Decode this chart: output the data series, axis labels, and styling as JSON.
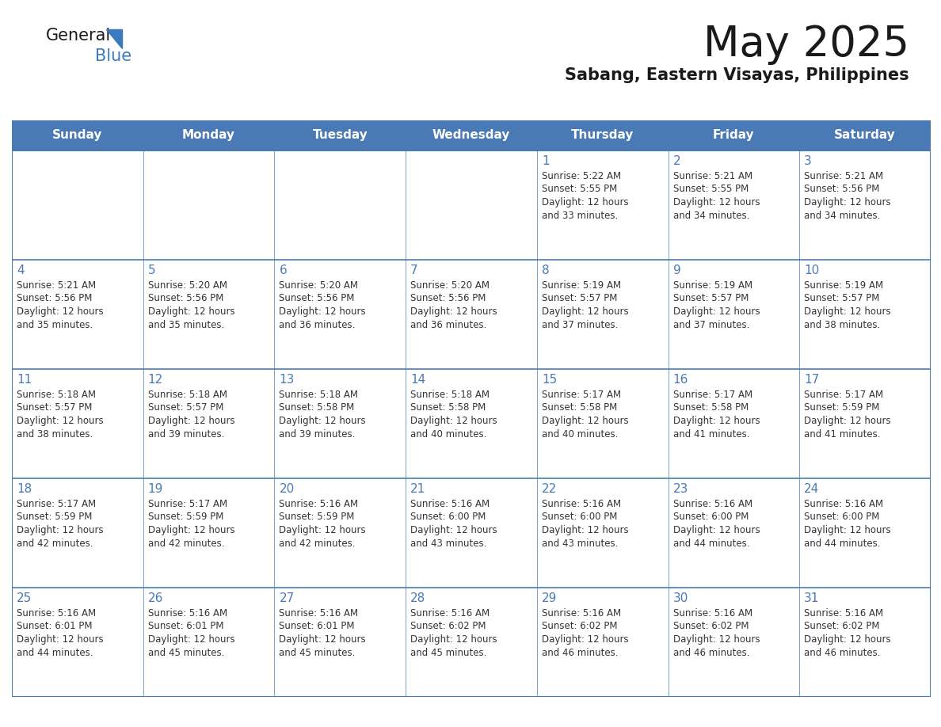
{
  "title": "May 2025",
  "subtitle": "Sabang, Eastern Visayas, Philippines",
  "days_of_week": [
    "Sunday",
    "Monday",
    "Tuesday",
    "Wednesday",
    "Thursday",
    "Friday",
    "Saturday"
  ],
  "header_bg": "#4a7ab5",
  "header_text": "#FFFFFF",
  "row_bg_white": "#FFFFFF",
  "row_bg_gray": "#F0F0F0",
  "day_number_color": "#4a7ab5",
  "text_color": "#333333",
  "grid_line_color": "#4a7ab5",
  "background_color": "#FFFFFF",
  "logo_general_color": "#1a1a1a",
  "logo_blue_color": "#3a7bbf",
  "logo_triangle_color": "#3a7bbf",
  "calendar_data": [
    [
      {
        "day": "",
        "info": ""
      },
      {
        "day": "",
        "info": ""
      },
      {
        "day": "",
        "info": ""
      },
      {
        "day": "",
        "info": ""
      },
      {
        "day": "1",
        "info": "Sunrise: 5:22 AM\nSunset: 5:55 PM\nDaylight: 12 hours\nand 33 minutes."
      },
      {
        "day": "2",
        "info": "Sunrise: 5:21 AM\nSunset: 5:55 PM\nDaylight: 12 hours\nand 34 minutes."
      },
      {
        "day": "3",
        "info": "Sunrise: 5:21 AM\nSunset: 5:56 PM\nDaylight: 12 hours\nand 34 minutes."
      }
    ],
    [
      {
        "day": "4",
        "info": "Sunrise: 5:21 AM\nSunset: 5:56 PM\nDaylight: 12 hours\nand 35 minutes."
      },
      {
        "day": "5",
        "info": "Sunrise: 5:20 AM\nSunset: 5:56 PM\nDaylight: 12 hours\nand 35 minutes."
      },
      {
        "day": "6",
        "info": "Sunrise: 5:20 AM\nSunset: 5:56 PM\nDaylight: 12 hours\nand 36 minutes."
      },
      {
        "day": "7",
        "info": "Sunrise: 5:20 AM\nSunset: 5:56 PM\nDaylight: 12 hours\nand 36 minutes."
      },
      {
        "day": "8",
        "info": "Sunrise: 5:19 AM\nSunset: 5:57 PM\nDaylight: 12 hours\nand 37 minutes."
      },
      {
        "day": "9",
        "info": "Sunrise: 5:19 AM\nSunset: 5:57 PM\nDaylight: 12 hours\nand 37 minutes."
      },
      {
        "day": "10",
        "info": "Sunrise: 5:19 AM\nSunset: 5:57 PM\nDaylight: 12 hours\nand 38 minutes."
      }
    ],
    [
      {
        "day": "11",
        "info": "Sunrise: 5:18 AM\nSunset: 5:57 PM\nDaylight: 12 hours\nand 38 minutes."
      },
      {
        "day": "12",
        "info": "Sunrise: 5:18 AM\nSunset: 5:57 PM\nDaylight: 12 hours\nand 39 minutes."
      },
      {
        "day": "13",
        "info": "Sunrise: 5:18 AM\nSunset: 5:58 PM\nDaylight: 12 hours\nand 39 minutes."
      },
      {
        "day": "14",
        "info": "Sunrise: 5:18 AM\nSunset: 5:58 PM\nDaylight: 12 hours\nand 40 minutes."
      },
      {
        "day": "15",
        "info": "Sunrise: 5:17 AM\nSunset: 5:58 PM\nDaylight: 12 hours\nand 40 minutes."
      },
      {
        "day": "16",
        "info": "Sunrise: 5:17 AM\nSunset: 5:58 PM\nDaylight: 12 hours\nand 41 minutes."
      },
      {
        "day": "17",
        "info": "Sunrise: 5:17 AM\nSunset: 5:59 PM\nDaylight: 12 hours\nand 41 minutes."
      }
    ],
    [
      {
        "day": "18",
        "info": "Sunrise: 5:17 AM\nSunset: 5:59 PM\nDaylight: 12 hours\nand 42 minutes."
      },
      {
        "day": "19",
        "info": "Sunrise: 5:17 AM\nSunset: 5:59 PM\nDaylight: 12 hours\nand 42 minutes."
      },
      {
        "day": "20",
        "info": "Sunrise: 5:16 AM\nSunset: 5:59 PM\nDaylight: 12 hours\nand 42 minutes."
      },
      {
        "day": "21",
        "info": "Sunrise: 5:16 AM\nSunset: 6:00 PM\nDaylight: 12 hours\nand 43 minutes."
      },
      {
        "day": "22",
        "info": "Sunrise: 5:16 AM\nSunset: 6:00 PM\nDaylight: 12 hours\nand 43 minutes."
      },
      {
        "day": "23",
        "info": "Sunrise: 5:16 AM\nSunset: 6:00 PM\nDaylight: 12 hours\nand 44 minutes."
      },
      {
        "day": "24",
        "info": "Sunrise: 5:16 AM\nSunset: 6:00 PM\nDaylight: 12 hours\nand 44 minutes."
      }
    ],
    [
      {
        "day": "25",
        "info": "Sunrise: 5:16 AM\nSunset: 6:01 PM\nDaylight: 12 hours\nand 44 minutes."
      },
      {
        "day": "26",
        "info": "Sunrise: 5:16 AM\nSunset: 6:01 PM\nDaylight: 12 hours\nand 45 minutes."
      },
      {
        "day": "27",
        "info": "Sunrise: 5:16 AM\nSunset: 6:01 PM\nDaylight: 12 hours\nand 45 minutes."
      },
      {
        "day": "28",
        "info": "Sunrise: 5:16 AM\nSunset: 6:02 PM\nDaylight: 12 hours\nand 45 minutes."
      },
      {
        "day": "29",
        "info": "Sunrise: 5:16 AM\nSunset: 6:02 PM\nDaylight: 12 hours\nand 46 minutes."
      },
      {
        "day": "30",
        "info": "Sunrise: 5:16 AM\nSunset: 6:02 PM\nDaylight: 12 hours\nand 46 minutes."
      },
      {
        "day": "31",
        "info": "Sunrise: 5:16 AM\nSunset: 6:02 PM\nDaylight: 12 hours\nand 46 minutes."
      }
    ]
  ]
}
